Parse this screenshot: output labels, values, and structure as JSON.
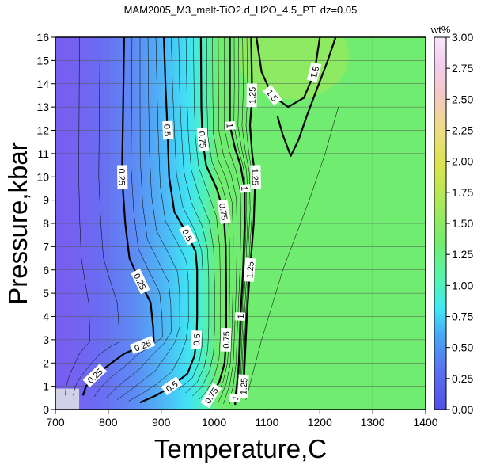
{
  "chart_data": {
    "type": "contour",
    "title": "MAM2005_M3_melt-TiO2.d_H2O_4.5_PT, dz=0.05",
    "xlabel": "Temperature,C",
    "ylabel": "Pressure,kbar",
    "xlim": [
      700,
      1400
    ],
    "ylim": [
      0,
      16
    ],
    "xticks": [
      "700",
      "800",
      "900",
      "1000",
      "1100",
      "1200",
      "1300",
      "1400"
    ],
    "yticks": [
      "0",
      "1",
      "2",
      "3",
      "4",
      "5",
      "6",
      "7",
      "8",
      "9",
      "10",
      "11",
      "12",
      "13",
      "14",
      "15",
      "16"
    ],
    "grid": true,
    "colorbar": {
      "label": "wt%",
      "range": [
        0,
        3
      ],
      "ticks": [
        "0.00",
        "0.25",
        "0.50",
        "0.75",
        "1.00",
        "1.25",
        "1.50",
        "1.75",
        "2.00",
        "2.25",
        "2.50",
        "2.75",
        "3.00"
      ],
      "colors": [
        "#5050e6",
        "#5a6ff0",
        "#48a8f5",
        "#40e8f4",
        "#58f4a8",
        "#72ec6e",
        "#a8e85a",
        "#d8e44c",
        "#eedc84",
        "#f4c8c8",
        "#f2ceee",
        "#fae6fa"
      ]
    },
    "contours": [
      {
        "level": 0.25,
        "labels": [
          "0.25",
          "0.25",
          "0.25",
          "0.25"
        ],
        "points": [
          [
            830,
            16
          ],
          [
            828,
            13
          ],
          [
            826,
            10
          ],
          [
            832,
            8
          ],
          [
            840,
            6.5
          ],
          [
            860,
            5.5
          ],
          [
            880,
            4.6
          ],
          [
            885,
            3.5
          ],
          [
            886,
            2.9
          ],
          [
            865,
            2.75
          ],
          [
            830,
            2.4
          ],
          [
            800,
            1.9
          ],
          [
            775,
            1.45
          ],
          [
            758,
            1.0
          ],
          [
            752,
            0.6
          ]
        ]
      },
      {
        "level": 0.5,
        "labels": [
          "0.5",
          "0.5",
          "0.5",
          "0.5"
        ],
        "points": [
          [
            905,
            16
          ],
          [
            908,
            14
          ],
          [
            912,
            12
          ],
          [
            915,
            10
          ],
          [
            925,
            8.5
          ],
          [
            950,
            7.5
          ],
          [
            965,
            6.8
          ],
          [
            968,
            6
          ],
          [
            968,
            4
          ],
          [
            967,
            3
          ],
          [
            963,
            2.3
          ],
          [
            950,
            1.55
          ],
          [
            920,
            1.0
          ],
          [
            890,
            0.6
          ],
          [
            860,
            0.3
          ]
        ]
      },
      {
        "level": 0.75,
        "labels": [
          "0.75",
          "0.75",
          "0.75",
          "0.75"
        ],
        "points": [
          [
            975,
            16
          ],
          [
            976,
            13
          ],
          [
            978,
            11.6
          ],
          [
            985,
            10.5
          ],
          [
            1005,
            9.5
          ],
          [
            1018,
            8.5
          ],
          [
            1022,
            7
          ],
          [
            1023,
            5
          ],
          [
            1023,
            3
          ],
          [
            1020,
            2
          ],
          [
            1010,
            1.2
          ],
          [
            995,
            0.6
          ],
          [
            985,
            0.3
          ]
        ]
      },
      {
        "level": 1.0,
        "labels": [
          "1",
          "1",
          "1",
          "1"
        ],
        "points": [
          [
            1030,
            16
          ],
          [
            1030,
            14
          ],
          [
            1030,
            12.2
          ],
          [
            1040,
            11.2
          ],
          [
            1050,
            10.5
          ],
          [
            1058,
            9.5
          ],
          [
            1058,
            8
          ],
          [
            1055,
            6
          ],
          [
            1050,
            4
          ],
          [
            1047,
            2
          ],
          [
            1043,
            1.0
          ],
          [
            1040,
            0.5
          ],
          [
            1040,
            0.2
          ]
        ]
      },
      {
        "level": 1.25,
        "labels": [
          "1.25",
          "1.25",
          "1.25",
          "1.25"
        ],
        "points": [
          [
            1070,
            16
          ],
          [
            1072,
            13.5
          ],
          [
            1068,
            12.2
          ],
          [
            1072,
            11
          ],
          [
            1078,
            10
          ],
          [
            1075,
            8
          ],
          [
            1068,
            6
          ],
          [
            1062,
            4
          ],
          [
            1058,
            2
          ],
          [
            1056,
            1.0
          ],
          [
            1055,
            0.5
          ]
        ]
      },
      {
        "level": 1.5,
        "labels": [
          "1.5",
          "1.5"
        ],
        "closed_open": true,
        "points": [
          [
            1080,
            16
          ],
          [
            1090,
            14.5
          ],
          [
            1110,
            13.5
          ],
          [
            1140,
            13
          ],
          [
            1170,
            13.4
          ],
          [
            1190,
            14.5
          ],
          [
            1200,
            16
          ]
        ]
      },
      {
        "level": 1.5,
        "labels": [],
        "points": [
          [
            1120,
            12.6
          ],
          [
            1130,
            11.8
          ],
          [
            1145,
            10.9
          ],
          [
            1160,
            11.6
          ],
          [
            1175,
            12.6
          ],
          [
            1195,
            13.8
          ],
          [
            1215,
            15
          ],
          [
            1230,
            16
          ]
        ]
      }
    ]
  }
}
